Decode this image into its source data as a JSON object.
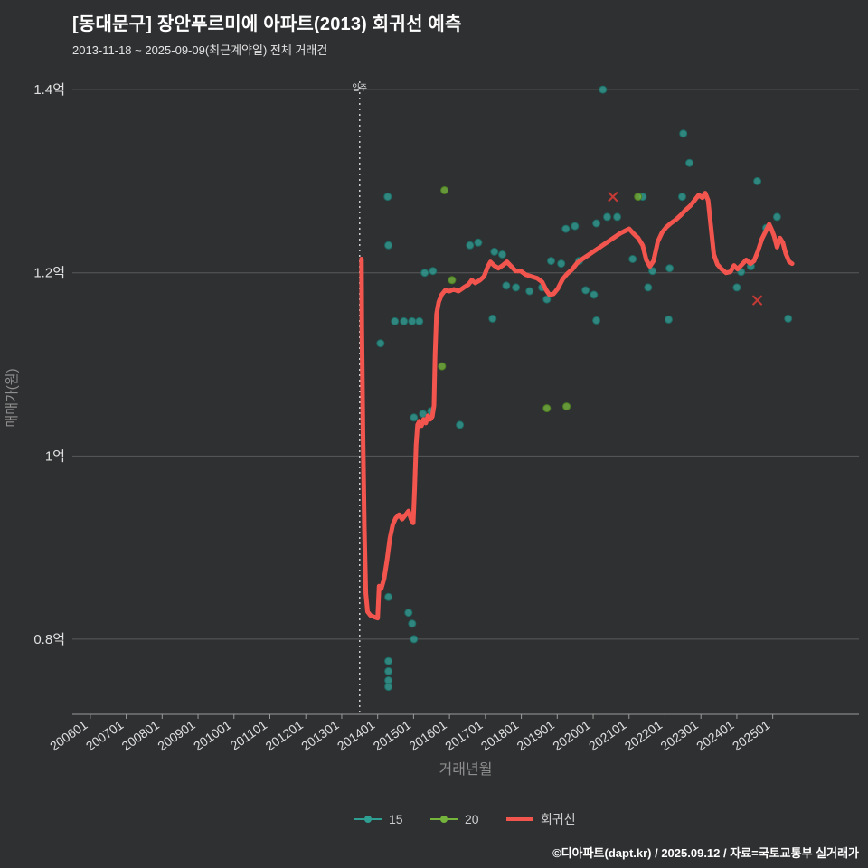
{
  "page": {
    "background": "#2f3032"
  },
  "header": {
    "title": "[동대문구] 장안푸르미에 아파트(2013) 회귀선 예측",
    "subtitle": "2013-11-18 ~ 2025-09-09(최근계약일) 전체 거래건"
  },
  "footer": {
    "credit": "©디아파트(dapt.kr) / 2025.09.12 / 자료=국토교통부 실거래가"
  },
  "chart_data": {
    "type": "scatter",
    "title": "[동대문구] 장안푸르미에 아파트(2013) 회귀선 예측",
    "xlabel": "거래년월",
    "ylabel": "매매가(원)",
    "xlim": [
      2005.5,
      2027.4
    ],
    "ylim": [
      0.718,
      1.409
    ],
    "grid": "horizontal",
    "legend_position": "bottom",
    "y_ticks": [
      {
        "label": "0.8억",
        "value": 0.8
      },
      {
        "label": "1억",
        "value": 1.0
      },
      {
        "label": "1.2억",
        "value": 1.2
      },
      {
        "label": "1.4억",
        "value": 1.4
      }
    ],
    "x_ticks": [
      {
        "label": "200601",
        "year": 2006
      },
      {
        "label": "200701",
        "year": 2007
      },
      {
        "label": "200801",
        "year": 2008
      },
      {
        "label": "200901",
        "year": 2009
      },
      {
        "label": "201001",
        "year": 2010
      },
      {
        "label": "201101",
        "year": 2011
      },
      {
        "label": "201201",
        "year": 2012
      },
      {
        "label": "201301",
        "year": 2013
      },
      {
        "label": "201401",
        "year": 2014
      },
      {
        "label": "201501",
        "year": 2015
      },
      {
        "label": "201601",
        "year": 2016
      },
      {
        "label": "201701",
        "year": 2017
      },
      {
        "label": "201801",
        "year": 2018
      },
      {
        "label": "201901",
        "year": 2019
      },
      {
        "label": "202001",
        "year": 2020
      },
      {
        "label": "202101",
        "year": 2021
      },
      {
        "label": "202201",
        "year": 2022
      },
      {
        "label": "202301",
        "year": 2023
      },
      {
        "label": "202401",
        "year": 2024
      },
      {
        "label": "202501",
        "year": 2025
      }
    ],
    "vline": {
      "year": 2013.5,
      "label": "입주"
    },
    "colors": {
      "series_15": "#2f9e93",
      "series_15_stroke": "#1d6b64",
      "series_20": "#74b33c",
      "series_20_stroke": "#4c7d22",
      "regression": "#f2544e",
      "x_marker": "#d63c36",
      "grid": "#595959",
      "axis_line": "#9a9a9a",
      "tick_label": "#e0e0e0",
      "axis_title": "#8f8f8f",
      "legend_text": "#cfcfcf",
      "vline": "#e8e8e8"
    },
    "series": [
      {
        "name": "15",
        "type": "scatter",
        "color": "#2f9e93",
        "stroke": "#1d6b64",
        "points": [
          [
            2020.27,
            1.4
          ],
          [
            2022.51,
            1.352
          ],
          [
            2022.68,
            1.32
          ],
          [
            2024.57,
            1.3
          ],
          [
            2014.28,
            1.283
          ],
          [
            2022.48,
            1.283
          ],
          [
            2021.38,
            1.283
          ],
          [
            2020.39,
            1.261
          ],
          [
            2020.67,
            1.261
          ],
          [
            2025.12,
            1.261
          ],
          [
            2019.24,
            1.248
          ],
          [
            2019.49,
            1.251
          ],
          [
            2020.09,
            1.254
          ],
          [
            2024.82,
            1.249
          ],
          [
            2014.3,
            1.23
          ],
          [
            2016.57,
            1.23
          ],
          [
            2016.8,
            1.233
          ],
          [
            2017.25,
            1.223
          ],
          [
            2017.47,
            1.22
          ],
          [
            2018.83,
            1.213
          ],
          [
            2019.11,
            1.21
          ],
          [
            2019.61,
            1.213
          ],
          [
            2021.1,
            1.215
          ],
          [
            2021.65,
            1.202
          ],
          [
            2022.13,
            1.205
          ],
          [
            2024.12,
            1.201
          ],
          [
            2024.39,
            1.207
          ],
          [
            2015.31,
            1.2
          ],
          [
            2015.54,
            1.202
          ],
          [
            2017.58,
            1.186
          ],
          [
            2017.85,
            1.184
          ],
          [
            2018.23,
            1.18
          ],
          [
            2018.58,
            1.184
          ],
          [
            2019.79,
            1.181
          ],
          [
            2020.02,
            1.176
          ],
          [
            2018.71,
            1.171
          ],
          [
            2021.53,
            1.184
          ],
          [
            2024.0,
            1.184
          ],
          [
            2014.48,
            1.147
          ],
          [
            2014.73,
            1.147
          ],
          [
            2014.96,
            1.147
          ],
          [
            2015.16,
            1.147
          ],
          [
            2017.2,
            1.15
          ],
          [
            2020.09,
            1.148
          ],
          [
            2022.1,
            1.149
          ],
          [
            2025.43,
            1.15
          ],
          [
            2014.08,
            1.123
          ],
          [
            2015.01,
            1.042
          ],
          [
            2015.26,
            1.046
          ],
          [
            2015.49,
            1.049
          ],
          [
            2016.29,
            1.034
          ],
          [
            2014.3,
            0.846
          ],
          [
            2014.86,
            0.829
          ],
          [
            2014.96,
            0.817
          ],
          [
            2015.01,
            0.8
          ],
          [
            2014.3,
            0.776
          ],
          [
            2014.3,
            0.765
          ],
          [
            2014.3,
            0.755
          ],
          [
            2014.3,
            0.748
          ]
        ]
      },
      {
        "name": "20",
        "type": "scatter",
        "color": "#74b33c",
        "stroke": "#4c7d22",
        "points": [
          [
            2015.86,
            1.29
          ],
          [
            2021.25,
            1.283
          ],
          [
            2016.07,
            1.192
          ],
          [
            2015.79,
            1.098
          ],
          [
            2018.71,
            1.052
          ],
          [
            2019.26,
            1.054
          ]
        ]
      },
      {
        "name": "회귀선",
        "type": "line",
        "color": "#f2544e",
        "points": [
          [
            2013.55,
            1.215
          ],
          [
            2013.56,
            1.14
          ],
          [
            2013.59,
            1.03
          ],
          [
            2013.63,
            0.92
          ],
          [
            2013.67,
            0.85
          ],
          [
            2013.72,
            0.83
          ],
          [
            2013.8,
            0.826
          ],
          [
            2013.92,
            0.824
          ],
          [
            2014.0,
            0.823
          ],
          [
            2014.04,
            0.858
          ],
          [
            2014.1,
            0.855
          ],
          [
            2014.18,
            0.866
          ],
          [
            2014.26,
            0.886
          ],
          [
            2014.34,
            0.91
          ],
          [
            2014.42,
            0.925
          ],
          [
            2014.5,
            0.932
          ],
          [
            2014.6,
            0.936
          ],
          [
            2014.68,
            0.931
          ],
          [
            2014.78,
            0.936
          ],
          [
            2014.86,
            0.94
          ],
          [
            2014.93,
            0.931
          ],
          [
            2014.99,
            0.927
          ],
          [
            2015.03,
            0.965
          ],
          [
            2015.07,
            1.012
          ],
          [
            2015.11,
            1.034
          ],
          [
            2015.16,
            1.038
          ],
          [
            2015.22,
            1.033
          ],
          [
            2015.28,
            1.04
          ],
          [
            2015.34,
            1.036
          ],
          [
            2015.4,
            1.044
          ],
          [
            2015.46,
            1.04
          ],
          [
            2015.52,
            1.043
          ],
          [
            2015.57,
            1.055
          ],
          [
            2015.6,
            1.11
          ],
          [
            2015.64,
            1.155
          ],
          [
            2015.7,
            1.168
          ],
          [
            2015.78,
            1.176
          ],
          [
            2015.88,
            1.181
          ],
          [
            2016.0,
            1.18
          ],
          [
            2016.12,
            1.182
          ],
          [
            2016.25,
            1.18
          ],
          [
            2016.4,
            1.184
          ],
          [
            2016.52,
            1.187
          ],
          [
            2016.62,
            1.192
          ],
          [
            2016.72,
            1.189
          ],
          [
            2016.85,
            1.192
          ],
          [
            2016.96,
            1.196
          ],
          [
            2017.06,
            1.206
          ],
          [
            2017.14,
            1.212
          ],
          [
            2017.24,
            1.208
          ],
          [
            2017.36,
            1.205
          ],
          [
            2017.48,
            1.208
          ],
          [
            2017.6,
            1.212
          ],
          [
            2017.72,
            1.207
          ],
          [
            2017.84,
            1.202
          ],
          [
            2017.98,
            1.202
          ],
          [
            2018.12,
            1.198
          ],
          [
            2018.28,
            1.196
          ],
          [
            2018.44,
            1.194
          ],
          [
            2018.58,
            1.19
          ],
          [
            2018.68,
            1.182
          ],
          [
            2018.78,
            1.176
          ],
          [
            2018.9,
            1.177
          ],
          [
            2019.02,
            1.183
          ],
          [
            2019.15,
            1.193
          ],
          [
            2019.28,
            1.199
          ],
          [
            2019.42,
            1.204
          ],
          [
            2019.56,
            1.211
          ],
          [
            2019.7,
            1.215
          ],
          [
            2019.85,
            1.219
          ],
          [
            2020.0,
            1.223
          ],
          [
            2020.15,
            1.227
          ],
          [
            2020.3,
            1.231
          ],
          [
            2020.45,
            1.235
          ],
          [
            2020.6,
            1.239
          ],
          [
            2020.75,
            1.243
          ],
          [
            2020.9,
            1.246
          ],
          [
            2021.0,
            1.248
          ],
          [
            2021.12,
            1.243
          ],
          [
            2021.25,
            1.238
          ],
          [
            2021.38,
            1.23
          ],
          [
            2021.48,
            1.214
          ],
          [
            2021.58,
            1.207
          ],
          [
            2021.68,
            1.213
          ],
          [
            2021.8,
            1.234
          ],
          [
            2021.92,
            1.244
          ],
          [
            2022.04,
            1.25
          ],
          [
            2022.16,
            1.254
          ],
          [
            2022.3,
            1.258
          ],
          [
            2022.44,
            1.263
          ],
          [
            2022.56,
            1.268
          ],
          [
            2022.7,
            1.273
          ],
          [
            2022.82,
            1.279
          ],
          [
            2022.94,
            1.285
          ],
          [
            2023.04,
            1.282
          ],
          [
            2023.12,
            1.287
          ],
          [
            2023.2,
            1.279
          ],
          [
            2023.28,
            1.25
          ],
          [
            2023.36,
            1.22
          ],
          [
            2023.46,
            1.209
          ],
          [
            2023.58,
            1.204
          ],
          [
            2023.7,
            1.2
          ],
          [
            2023.82,
            1.201
          ],
          [
            2023.92,
            1.208
          ],
          [
            2024.02,
            1.204
          ],
          [
            2024.14,
            1.209
          ],
          [
            2024.26,
            1.214
          ],
          [
            2024.38,
            1.21
          ],
          [
            2024.48,
            1.213
          ],
          [
            2024.58,
            1.223
          ],
          [
            2024.7,
            1.237
          ],
          [
            2024.8,
            1.245
          ],
          [
            2024.9,
            1.253
          ],
          [
            2024.97,
            1.247
          ],
          [
            2025.04,
            1.24
          ],
          [
            2025.12,
            1.228
          ],
          [
            2025.2,
            1.238
          ],
          [
            2025.28,
            1.233
          ],
          [
            2025.36,
            1.221
          ],
          [
            2025.46,
            1.212
          ],
          [
            2025.54,
            1.21
          ]
        ]
      }
    ],
    "x_markers": [
      [
        2020.55,
        1.283
      ],
      [
        2024.57,
        1.17
      ]
    ]
  }
}
